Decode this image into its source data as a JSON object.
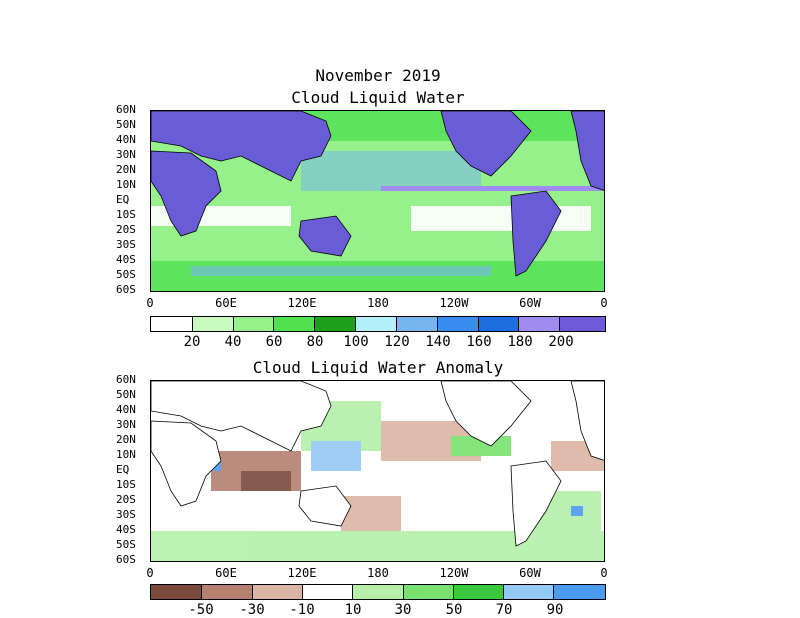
{
  "header": {
    "month": "November 2019",
    "title_top": "Cloud Liquid Water",
    "title_bottom": "Cloud Liquid Water Anomaly"
  },
  "axes": {
    "lat_labels": [
      "60N",
      "50N",
      "40N",
      "30N",
      "20N",
      "10N",
      "EQ",
      "10S",
      "20S",
      "30S",
      "40S",
      "50S",
      "60S"
    ],
    "lon_labels": [
      "0",
      "60E",
      "120E",
      "180",
      "120W",
      "60W",
      "0"
    ]
  },
  "colors": {
    "land": "#6a5cd6",
    "ocean_fill": "#b6f2ad",
    "coast": "#000000",
    "anomaly_pos": "#7ee07a",
    "anomaly_neg": "#d8b3a6",
    "anomaly_high": "#4f9ef0",
    "anomaly_low": "#7a4a3c"
  },
  "top_colorbar": {
    "colors": [
      "#ffffff",
      "#c8fac0",
      "#96f08c",
      "#50e050",
      "#1ea01e",
      "#b4f0fa",
      "#78b4f0",
      "#3c8cf0",
      "#1e6ee0",
      "#a08cf0",
      "#6e5ad8"
    ],
    "labels": [
      "20",
      "40",
      "60",
      "80",
      "100",
      "120",
      "140",
      "160",
      "180",
      "200"
    ]
  },
  "bottom_colorbar": {
    "colors": [
      "#7a4a3c",
      "#b48070",
      "#dcb4a4",
      "#ffffff",
      "#b4f0a8",
      "#78e06e",
      "#3cc83c",
      "#96c8f5",
      "#4b9bf0"
    ],
    "labels": [
      "-50",
      "-30",
      "-10",
      "10",
      "30",
      "50",
      "70",
      "90"
    ]
  }
}
